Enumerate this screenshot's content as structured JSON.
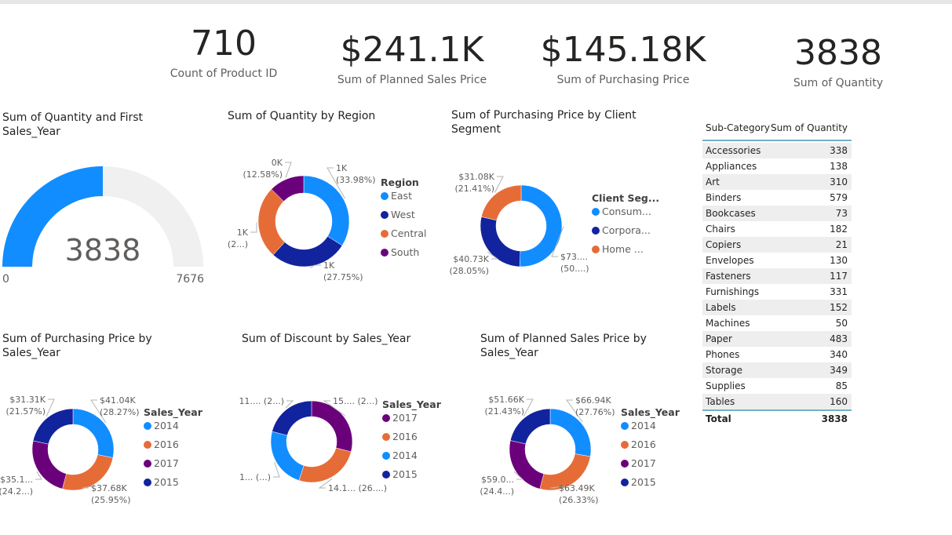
{
  "kpis": [
    {
      "value": "710",
      "label": "Count of Product ID"
    },
    {
      "value": "$241.1K",
      "label": "Sum of Planned Sales Price"
    },
    {
      "value": "$145.18K",
      "label": "Sum of Purchasing Price"
    },
    {
      "value": "3838",
      "label": "Sum of Quantity"
    }
  ],
  "colors": {
    "blue": "#118dff",
    "navy": "#12239e",
    "orange": "#e66c37",
    "purple": "#6b007b",
    "track": "#f0f0f0"
  },
  "chart_data": [
    {
      "type": "gauge",
      "title": "Sum of Quantity and First Sales_Year",
      "value": 3838,
      "min": 0,
      "max": 7676,
      "value_label": "3838",
      "min_label": "0",
      "max_label": "7676"
    },
    {
      "type": "pie",
      "title": "Sum of Quantity by Region",
      "legend_title": "Region",
      "legend": [
        "East",
        "West",
        "Central",
        "South"
      ],
      "slices": [
        {
          "name": "East",
          "share": 33.98,
          "color": "#118dff",
          "label": [
            "1K",
            "(33.98%)"
          ]
        },
        {
          "name": "West",
          "share": 27.75,
          "color": "#12239e",
          "label": [
            "1K",
            "(27.75%)"
          ]
        },
        {
          "name": "Central",
          "share": 25.69,
          "color": "#e66c37",
          "label": [
            "1K",
            "(2...)"
          ]
        },
        {
          "name": "South",
          "share": 12.58,
          "color": "#6b007b",
          "label": [
            "0K",
            "(12.58%)"
          ]
        }
      ]
    },
    {
      "type": "pie",
      "title": "Sum of Purchasing Price by Client Segment",
      "legend_title": "Client Seg...",
      "legend": [
        "Consum...",
        "Corpora...",
        "Home ..."
      ],
      "slices": [
        {
          "name": "Consumer",
          "share": 50.54,
          "color": "#118dff",
          "label": [
            "$73....",
            "(50....)"
          ]
        },
        {
          "name": "Corporate",
          "share": 28.05,
          "color": "#12239e",
          "label": [
            "$40.73K",
            "(28.05%)"
          ]
        },
        {
          "name": "Home Office",
          "share": 21.41,
          "color": "#e66c37",
          "label": [
            "$31.08K",
            "(21.41%)"
          ]
        }
      ]
    },
    {
      "type": "pie",
      "title": "Sum of Purchasing Price by Sales_Year",
      "legend_title": "Sales_Year",
      "legend": [
        "2014",
        "2016",
        "2017",
        "2015"
      ],
      "slices": [
        {
          "name": "2014",
          "share": 28.27,
          "value": 41.04,
          "color": "#118dff",
          "label": [
            "$41.04K",
            "(28.27%)"
          ]
        },
        {
          "name": "2016",
          "share": 25.95,
          "value": 37.68,
          "color": "#e66c37",
          "label": [
            "$37.68K",
            "(25.95%)"
          ]
        },
        {
          "name": "2017",
          "share": 24.21,
          "value": 35.15,
          "color": "#6b007b",
          "label": [
            "$35.1...",
            "(24.2...)"
          ]
        },
        {
          "name": "2015",
          "share": 21.57,
          "value": 31.31,
          "color": "#12239e",
          "label": [
            "$31.31K",
            "(21.57%)"
          ]
        }
      ]
    },
    {
      "type": "pie",
      "title": "Sum of Discount by Sales_Year",
      "legend_title": "Sales_Year",
      "legend": [
        "2017",
        "2016",
        "2014",
        "2015"
      ],
      "slices": [
        {
          "name": "2017",
          "share": 29,
          "color": "#6b007b",
          "label": [
            "15.... (2...)"
          ]
        },
        {
          "name": "2016",
          "share": 26,
          "color": "#e66c37",
          "label": [
            "14.1... (26....)"
          ]
        },
        {
          "name": "2014",
          "share": 24,
          "color": "#118dff",
          "label": [
            "1... (...)"
          ]
        },
        {
          "name": "2015",
          "share": 21,
          "color": "#12239e",
          "label": [
            "11.... (2...)"
          ]
        }
      ]
    },
    {
      "type": "pie",
      "title": "Sum of Planned Sales Price by Sales_Year",
      "legend_title": "Sales_Year",
      "legend": [
        "2014",
        "2016",
        "2017",
        "2015"
      ],
      "slices": [
        {
          "name": "2014",
          "share": 27.76,
          "value": 66.94,
          "color": "#118dff",
          "label": [
            "$66.94K",
            "(27.76%)"
          ]
        },
        {
          "name": "2016",
          "share": 26.33,
          "value": 63.49,
          "color": "#e66c37",
          "label": [
            "$63.49K",
            "(26.33%)"
          ]
        },
        {
          "name": "2017",
          "share": 24.48,
          "value": 59.01,
          "color": "#6b007b",
          "label": [
            "$59.0...",
            "(24.4...)"
          ]
        },
        {
          "name": "2015",
          "share": 21.43,
          "value": 51.66,
          "color": "#12239e",
          "label": [
            "$51.66K",
            "(21.43%)"
          ]
        }
      ]
    },
    {
      "type": "table",
      "columns": [
        "Sub-Category",
        "Sum of Quantity"
      ],
      "rows": [
        [
          "Accessories",
          "338"
        ],
        [
          "Appliances",
          "138"
        ],
        [
          "Art",
          "310"
        ],
        [
          "Binders",
          "579"
        ],
        [
          "Bookcases",
          "73"
        ],
        [
          "Chairs",
          "182"
        ],
        [
          "Copiers",
          "21"
        ],
        [
          "Envelopes",
          "130"
        ],
        [
          "Fasteners",
          "117"
        ],
        [
          "Furnishings",
          "331"
        ],
        [
          "Labels",
          "152"
        ],
        [
          "Machines",
          "50"
        ],
        [
          "Paper",
          "483"
        ],
        [
          "Phones",
          "340"
        ],
        [
          "Storage",
          "349"
        ],
        [
          "Supplies",
          "85"
        ],
        [
          "Tables",
          "160"
        ]
      ],
      "total": [
        "Total",
        "3838"
      ]
    }
  ]
}
